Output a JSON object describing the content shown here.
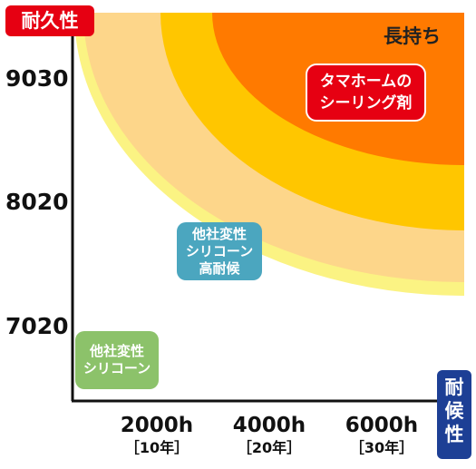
{
  "y_axis_tag": "耐久性",
  "x_axis_tag": "耐候性",
  "chart_data": {
    "type": "area",
    "title": "",
    "xlabel": "耐候性",
    "ylabel": "耐久性",
    "y_ticks": [
      "9030",
      "8020",
      "7020"
    ],
    "x_ticks": [
      {
        "main": "2000h",
        "sub": "［10年］"
      },
      {
        "main": "4000h",
        "sub": "［20年］"
      },
      {
        "main": "6000h",
        "sub": "［30年］"
      }
    ],
    "corner_label": "長持ち",
    "bands": [
      {
        "label": "他社変性シリコーン",
        "color": "#8cc26a",
        "band_color": "#ffffff"
      },
      {
        "label": "他社変性シリコーン高耐候",
        "color": "#4ba6bf",
        "band_color": "#fbf383"
      },
      {
        "label": "",
        "color": "#fdd68a",
        "band_color": "#fdd68a"
      },
      {
        "label": "",
        "color": "#ffc600",
        "band_color": "#ffc600"
      },
      {
        "label": "タマホームのシーリング剤",
        "color": "#e60012",
        "band_color": "#ff7a00"
      }
    ],
    "grid": false,
    "legend": "none"
  },
  "labels": {
    "tama_line1": "タマホームの",
    "tama_line2": "シーリング剤",
    "high_line1": "他社変性",
    "high_line2": "シリコーン",
    "high_line3": "高耐候",
    "std_line1": "他社変性",
    "std_line2": "シリコーン"
  }
}
